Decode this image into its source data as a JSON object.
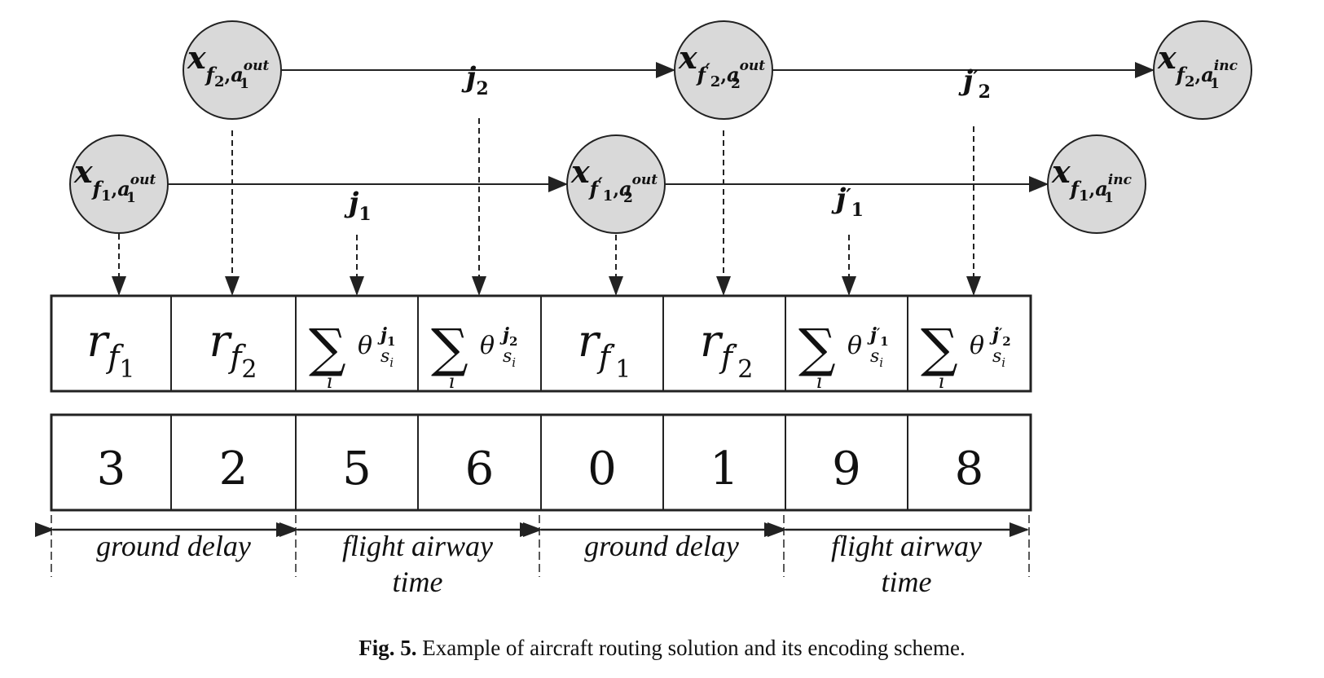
{
  "nodes": [
    {
      "id": "x_f2_out",
      "base": "x",
      "sub": "f",
      "subSub": "2",
      "prime": false,
      "airport": "a",
      "aSub": "1",
      "aSup": "out"
    },
    {
      "id": "x_f2p_out",
      "base": "x",
      "sub": "f",
      "subSub": "2",
      "prime": true,
      "airport": "a",
      "aSub": "2",
      "aSup": "out"
    },
    {
      "id": "x_f2_inc",
      "base": "x",
      "sub": "f",
      "subSub": "2",
      "prime": false,
      "airport": "a",
      "aSub": "1",
      "aSup": "inc"
    },
    {
      "id": "x_f1_out",
      "base": "x",
      "sub": "f",
      "subSub": "1",
      "prime": false,
      "airport": "a",
      "aSub": "1",
      "aSup": "out"
    },
    {
      "id": "x_f1p_out",
      "base": "x",
      "sub": "f",
      "subSub": "1",
      "prime": true,
      "airport": "a",
      "aSub": "2",
      "aSup": "out"
    },
    {
      "id": "x_f1_inc",
      "base": "x",
      "sub": "f",
      "subSub": "1",
      "prime": false,
      "airport": "a",
      "aSub": "1",
      "aSup": "inc"
    }
  ],
  "edge_labels": [
    {
      "id": "j2",
      "base": "j",
      "sub": "2",
      "prime": false
    },
    {
      "id": "j2p",
      "base": "j",
      "sub": "2",
      "prime": true
    },
    {
      "id": "j1",
      "base": "j",
      "sub": "1",
      "prime": false
    },
    {
      "id": "j1p",
      "base": "j",
      "sub": "1",
      "prime": true
    }
  ],
  "gene_cells": [
    {
      "kind": "r",
      "flight": "1",
      "prime": false
    },
    {
      "kind": "r",
      "flight": "2",
      "prime": false
    },
    {
      "kind": "sum",
      "index": "i",
      "theta": "θ",
      "sup": "j",
      "supSub": "1",
      "prime": false,
      "sub": "s",
      "subSub": "i"
    },
    {
      "kind": "sum",
      "index": "i",
      "theta": "θ",
      "sup": "j",
      "supSub": "2",
      "prime": false,
      "sub": "s",
      "subSub": "i"
    },
    {
      "kind": "r",
      "flight": "1",
      "prime": true
    },
    {
      "kind": "r",
      "flight": "2",
      "prime": true
    },
    {
      "kind": "sum",
      "index": "i",
      "theta": "θ",
      "sup": "j",
      "supSub": "1",
      "prime": true,
      "sub": "s",
      "subSub": "i"
    },
    {
      "kind": "sum",
      "index": "i",
      "theta": "θ",
      "sup": "j",
      "supSub": "2",
      "prime": true,
      "sub": "s",
      "subSub": "i"
    }
  ],
  "values": [
    "3",
    "2",
    "5",
    "6",
    "0",
    "1",
    "9",
    "8"
  ],
  "spans": [
    {
      "lines": [
        "ground delay"
      ]
    },
    {
      "lines": [
        "flight airway",
        "time"
      ]
    },
    {
      "lines": [
        "ground delay"
      ]
    },
    {
      "lines": [
        "flight airway",
        "time"
      ]
    }
  ],
  "caption": {
    "label": "Fig. 5.",
    "text": " Example of aircraft routing solution and its encoding scheme."
  },
  "colors": {
    "node_fill": "#d9d9d9",
    "stroke": "#222222",
    "text": "#111111"
  }
}
